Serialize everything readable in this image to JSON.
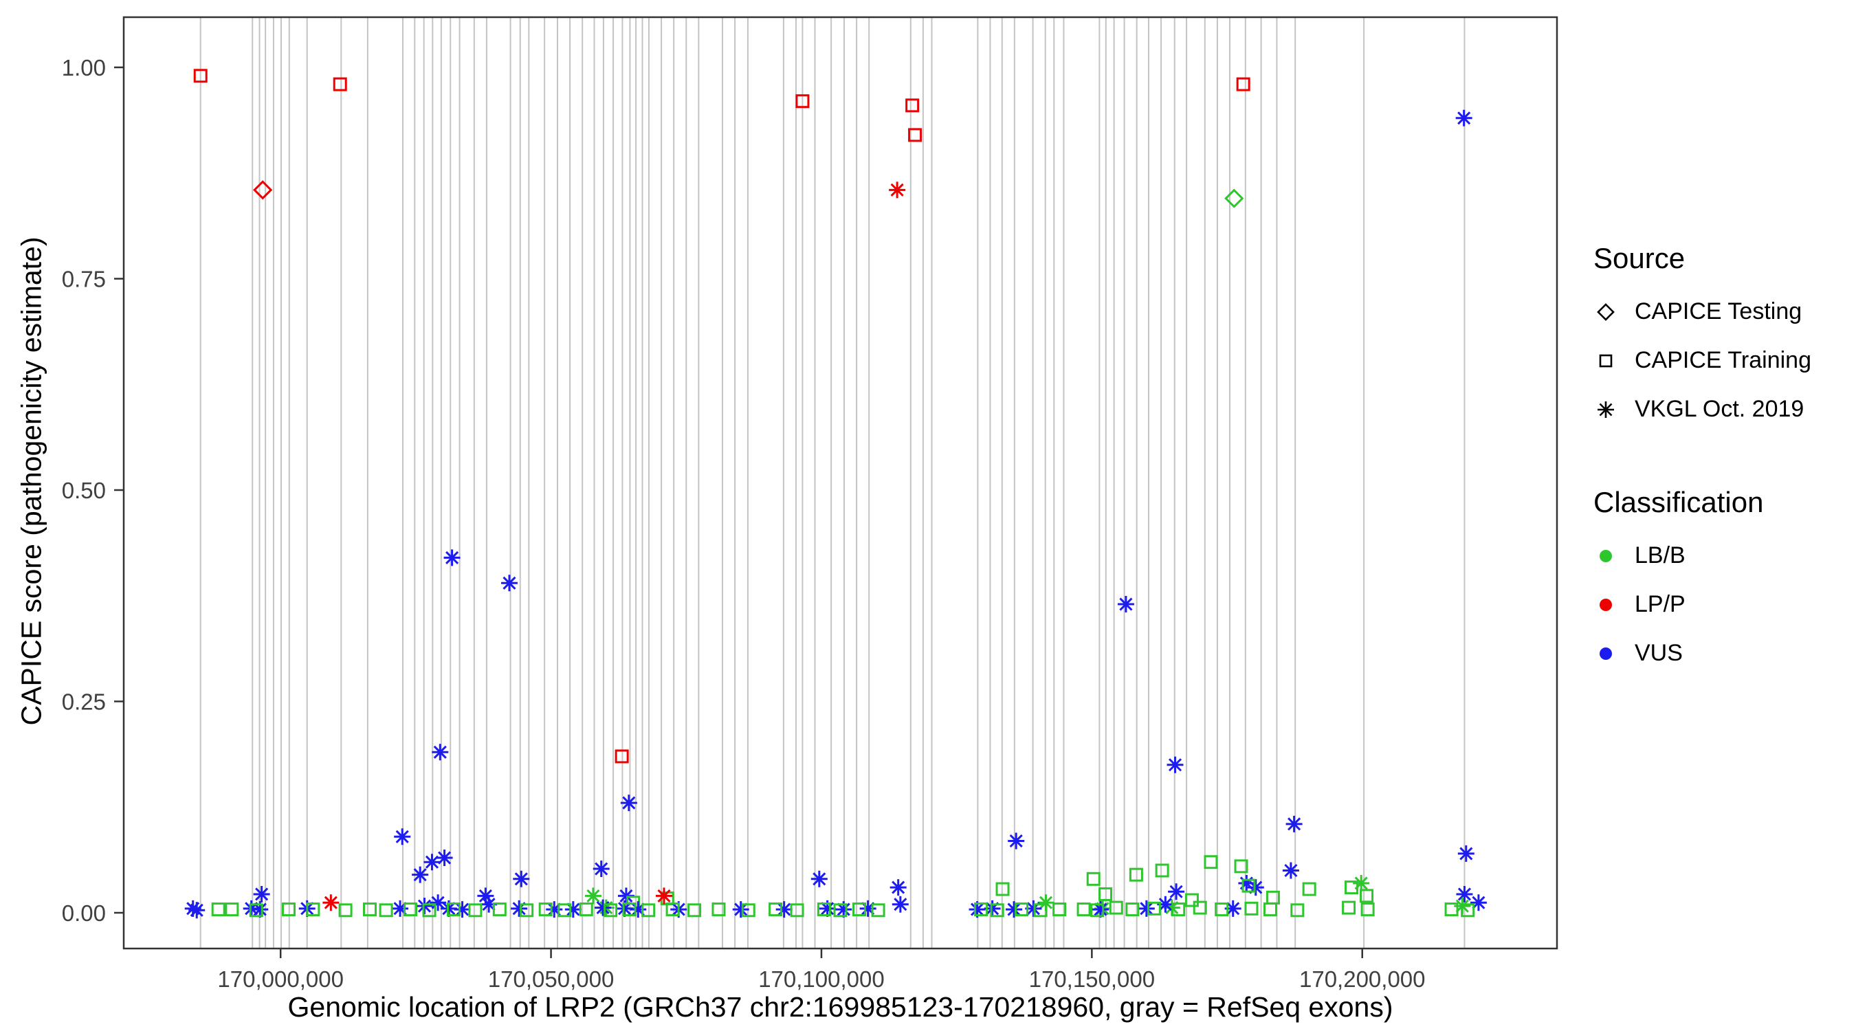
{
  "figure": {
    "xlabel": "Genomic location of LRP2 (GRCh37 chr2:169985123-170218960, gray = RefSeq exons)",
    "ylabel": "CAPICE score (pathogenicity estimate)"
  },
  "legend": {
    "source": {
      "title": "Source",
      "items": [
        {
          "label": "CAPICE Testing",
          "shape": "diamond"
        },
        {
          "label": "CAPICE Training",
          "shape": "square"
        },
        {
          "label": "VKGL Oct. 2019",
          "shape": "asterisk"
        }
      ]
    },
    "classification": {
      "title": "Classification",
      "items": [
        {
          "label": "LB/B",
          "color": "#2DC62D"
        },
        {
          "label": "LP/P",
          "color": "#EE0000"
        },
        {
          "label": "VUS",
          "color": "#1C1CF0"
        }
      ]
    }
  },
  "chart_data": {
    "type": "scatter",
    "title": "",
    "xlabel": "Genomic location of LRP2 (GRCh37 chr2:169985123-170218960, gray = RefSeq exons)",
    "ylabel": "CAPICE score (pathogenicity estimate)",
    "xlim": [
      169971000,
      170236000
    ],
    "ylim": [
      0,
      1
    ],
    "x_ticks": [
      170000000,
      170050000,
      170100000,
      170150000,
      170200000
    ],
    "x_tick_labels": [
      "170,000,000",
      "170,050,000",
      "170,100,000",
      "170,150,000",
      "170,200,000"
    ],
    "y_ticks": [
      0,
      0.25,
      0.5,
      0.75,
      1
    ],
    "y_tick_labels": [
      "0.00",
      "0.25",
      "0.50",
      "0.75",
      "1.00"
    ],
    "grid": false,
    "legend_position": "right",
    "encoding": {
      "shape_by": "source",
      "color_by": "classification"
    },
    "shape_map": {
      "test": "open-diamond (CAPICE Testing)",
      "train": "open-square (CAPICE Training)",
      "vkgl": "asterisk (VKGL Oct. 2019)"
    },
    "colors": {
      "B": "#2DC62D",
      "P": "#EE0000",
      "U": "#1C1CF0"
    },
    "class_map": {
      "B": "LB/B",
      "P": "LP/P",
      "U": "VUS"
    },
    "exon_color": "#C4C4C4",
    "exons": [
      169985200,
      169994800,
      169996100,
      169997200,
      169998700,
      170000100,
      170001600,
      170004900,
      170011200,
      170016100,
      170022600,
      170024800,
      170026500,
      170028100,
      170029700,
      170031400,
      170033100,
      170035800,
      170038100,
      170042500,
      170044300,
      170045900,
      170048800,
      170051200,
      170053500,
      170055800,
      170058000,
      170059700,
      170061500,
      170063200,
      170064600,
      170065700,
      170066900,
      170068100,
      170070400,
      170072700,
      170075000,
      170077300,
      170081700,
      170084000,
      170086400,
      170093000,
      170095300,
      170096500,
      170098800,
      170101800,
      170104200,
      170106500,
      170108800,
      170116500,
      170118800,
      170120400,
      170128900,
      170131200,
      170133400,
      170135700,
      170139100,
      170141400,
      170143000,
      170144800,
      170151400,
      170152600,
      170154100,
      170156000,
      170158300,
      170160500,
      170162800,
      170165300,
      170167500,
      170170900,
      170173200,
      170175500,
      170178400,
      170181300,
      170184200,
      170187600,
      170200300,
      170218900
    ],
    "points": [
      [
        169985200,
        0.99,
        "train",
        "P"
      ],
      [
        170011000,
        0.98,
        "train",
        "P"
      ],
      [
        170096500,
        0.96,
        "train",
        "P"
      ],
      [
        170116800,
        0.955,
        "train",
        "P"
      ],
      [
        170117300,
        0.92,
        "train",
        "P"
      ],
      [
        170178000,
        0.98,
        "train",
        "P"
      ],
      [
        170063100,
        0.185,
        "train",
        "P"
      ],
      [
        169996700,
        0.855,
        "test",
        "P"
      ],
      [
        170114000,
        0.855,
        "vkgl",
        "P"
      ],
      [
        170176300,
        0.845,
        "test",
        "B"
      ],
      [
        170218800,
        0.94,
        "vkgl",
        "U"
      ],
      [
        170031700,
        0.42,
        "vkgl",
        "U"
      ],
      [
        170042300,
        0.39,
        "vkgl",
        "U"
      ],
      [
        170156300,
        0.365,
        "vkgl",
        "U"
      ],
      [
        170029500,
        0.19,
        "vkgl",
        "U"
      ],
      [
        170165400,
        0.175,
        "vkgl",
        "U"
      ],
      [
        170064400,
        0.13,
        "vkgl",
        "U"
      ],
      [
        170187400,
        0.105,
        "vkgl",
        "U"
      ],
      [
        170022500,
        0.09,
        "vkgl",
        "U"
      ],
      [
        170136000,
        0.085,
        "vkgl",
        "U"
      ],
      [
        170219200,
        0.07,
        "vkgl",
        "U"
      ],
      [
        170030300,
        0.065,
        "vkgl",
        "U"
      ],
      [
        170028000,
        0.06,
        "vkgl",
        "U"
      ],
      [
        170059300,
        0.052,
        "vkgl",
        "U"
      ],
      [
        170186800,
        0.05,
        "vkgl",
        "U"
      ],
      [
        170025800,
        0.045,
        "vkgl",
        "U"
      ],
      [
        170044500,
        0.04,
        "vkgl",
        "U"
      ],
      [
        170099600,
        0.04,
        "vkgl",
        "U"
      ],
      [
        170178600,
        0.035,
        "vkgl",
        "U"
      ],
      [
        170114200,
        0.03,
        "vkgl",
        "U"
      ],
      [
        170180300,
        0.03,
        "vkgl",
        "U"
      ],
      [
        169996500,
        0.022,
        "vkgl",
        "U"
      ],
      [
        170037900,
        0.02,
        "vkgl",
        "U"
      ],
      [
        170063900,
        0.02,
        "vkgl",
        "U"
      ],
      [
        170165600,
        0.025,
        "vkgl",
        "U"
      ],
      [
        170218900,
        0.022,
        "vkgl",
        "U"
      ],
      [
        170221500,
        0.012,
        "vkgl",
        "U"
      ],
      [
        170172000,
        0.06,
        "train",
        "B"
      ],
      [
        170177600,
        0.055,
        "train",
        "B"
      ],
      [
        170163000,
        0.05,
        "train",
        "B"
      ],
      [
        170158200,
        0.045,
        "train",
        "B"
      ],
      [
        170150300,
        0.04,
        "train",
        "B"
      ],
      [
        170133500,
        0.028,
        "train",
        "B"
      ],
      [
        170152500,
        0.022,
        "train",
        "B"
      ],
      [
        170179000,
        0.032,
        "train",
        "B"
      ],
      [
        170190200,
        0.028,
        "train",
        "B"
      ],
      [
        170198000,
        0.03,
        "train",
        "B"
      ],
      [
        170200800,
        0.02,
        "train",
        "B"
      ],
      [
        170071500,
        0.017,
        "train",
        "B"
      ],
      [
        170065200,
        0.012,
        "train",
        "B"
      ],
      [
        170168500,
        0.015,
        "train",
        "B"
      ],
      [
        170183500,
        0.018,
        "train",
        "B"
      ],
      [
        170199800,
        0.035,
        "vkgl",
        "B"
      ],
      [
        170057800,
        0.02,
        "vkgl",
        "B"
      ],
      [
        170141500,
        0.012,
        "vkgl",
        "B"
      ],
      [
        170218500,
        0.008,
        "vkgl",
        "B"
      ],
      [
        170164800,
        0.006,
        "vkgl",
        "B"
      ],
      [
        170060200,
        0.006,
        "vkgl",
        "B"
      ],
      [
        170152000,
        0.005,
        "vkgl",
        "B"
      ],
      [
        170009300,
        0.012,
        "vkgl",
        "P"
      ],
      [
        170070900,
        0.02,
        "vkgl",
        "P"
      ],
      [
        169983800,
        0.005,
        "vkgl",
        "U"
      ],
      [
        169984500,
        0.003,
        "vkgl",
        "U"
      ],
      [
        169994600,
        0.005,
        "vkgl",
        "U"
      ],
      [
        169996200,
        0.004,
        "vkgl",
        "U"
      ],
      [
        170004900,
        0.005,
        "vkgl",
        "U"
      ],
      [
        170022100,
        0.005,
        "vkgl",
        "U"
      ],
      [
        170026600,
        0.008,
        "vkgl",
        "U"
      ],
      [
        170029100,
        0.012,
        "vkgl",
        "U"
      ],
      [
        170031100,
        0.005,
        "vkgl",
        "U"
      ],
      [
        170033600,
        0.004,
        "vkgl",
        "U"
      ],
      [
        170038500,
        0.01,
        "vkgl",
        "U"
      ],
      [
        170044100,
        0.005,
        "vkgl",
        "U"
      ],
      [
        170050600,
        0.004,
        "vkgl",
        "U"
      ],
      [
        170054100,
        0.004,
        "vkgl",
        "U"
      ],
      [
        170059600,
        0.006,
        "vkgl",
        "U"
      ],
      [
        170063600,
        0.005,
        "vkgl",
        "U"
      ],
      [
        170066100,
        0.004,
        "vkgl",
        "U"
      ],
      [
        170073600,
        0.004,
        "vkgl",
        "U"
      ],
      [
        170085100,
        0.004,
        "vkgl",
        "U"
      ],
      [
        170093100,
        0.004,
        "vkgl",
        "U"
      ],
      [
        170101100,
        0.005,
        "vkgl",
        "U"
      ],
      [
        170104100,
        0.004,
        "vkgl",
        "U"
      ],
      [
        170108600,
        0.005,
        "vkgl",
        "U"
      ],
      [
        170114600,
        0.01,
        "vkgl",
        "U"
      ],
      [
        170128800,
        0.004,
        "vkgl",
        "U"
      ],
      [
        170131600,
        0.005,
        "vkgl",
        "U"
      ],
      [
        170135600,
        0.004,
        "vkgl",
        "U"
      ],
      [
        170139200,
        0.005,
        "vkgl",
        "U"
      ],
      [
        170151600,
        0.004,
        "vkgl",
        "U"
      ],
      [
        170160100,
        0.005,
        "vkgl",
        "U"
      ],
      [
        170163600,
        0.01,
        "vkgl",
        "U"
      ],
      [
        170176100,
        0.005,
        "vkgl",
        "U"
      ],
      [
        169988500,
        0.004,
        "train",
        "B"
      ],
      [
        169991000,
        0.004,
        "train",
        "B"
      ],
      [
        169995500,
        0.003,
        "train",
        "B"
      ],
      [
        170001500,
        0.004,
        "train",
        "B"
      ],
      [
        170006000,
        0.004,
        "train",
        "B"
      ],
      [
        170012000,
        0.003,
        "train",
        "B"
      ],
      [
        170016500,
        0.004,
        "train",
        "B"
      ],
      [
        170019500,
        0.003,
        "train",
        "B"
      ],
      [
        170024000,
        0.004,
        "train",
        "B"
      ],
      [
        170027500,
        0.003,
        "train",
        "B"
      ],
      [
        170032000,
        0.004,
        "train",
        "B"
      ],
      [
        170036000,
        0.003,
        "train",
        "B"
      ],
      [
        170040500,
        0.004,
        "train",
        "B"
      ],
      [
        170045500,
        0.003,
        "train",
        "B"
      ],
      [
        170049000,
        0.004,
        "train",
        "B"
      ],
      [
        170052500,
        0.003,
        "train",
        "B"
      ],
      [
        170056500,
        0.004,
        "train",
        "B"
      ],
      [
        170061000,
        0.003,
        "train",
        "B"
      ],
      [
        170064500,
        0.004,
        "train",
        "B"
      ],
      [
        170068000,
        0.003,
        "train",
        "B"
      ],
      [
        170072500,
        0.004,
        "train",
        "B"
      ],
      [
        170076500,
        0.003,
        "train",
        "B"
      ],
      [
        170081000,
        0.004,
        "train",
        "B"
      ],
      [
        170086500,
        0.003,
        "train",
        "B"
      ],
      [
        170091500,
        0.004,
        "train",
        "B"
      ],
      [
        170095500,
        0.003,
        "train",
        "B"
      ],
      [
        170100500,
        0.004,
        "train",
        "B"
      ],
      [
        170103500,
        0.003,
        "train",
        "B"
      ],
      [
        170107000,
        0.004,
        "train",
        "B"
      ],
      [
        170110500,
        0.003,
        "train",
        "B"
      ],
      [
        170129500,
        0.004,
        "train",
        "B"
      ],
      [
        170132500,
        0.003,
        "train",
        "B"
      ],
      [
        170137000,
        0.004,
        "train",
        "B"
      ],
      [
        170140500,
        0.003,
        "train",
        "B"
      ],
      [
        170144000,
        0.004,
        "train",
        "B"
      ],
      [
        170148500,
        0.004,
        "train",
        "B"
      ],
      [
        170151000,
        0.003,
        "train",
        "B"
      ],
      [
        170154500,
        0.006,
        "train",
        "B"
      ],
      [
        170157500,
        0.004,
        "train",
        "B"
      ],
      [
        170161500,
        0.005,
        "train",
        "B"
      ],
      [
        170166000,
        0.004,
        "train",
        "B"
      ],
      [
        170170000,
        0.006,
        "train",
        "B"
      ],
      [
        170174000,
        0.004,
        "train",
        "B"
      ],
      [
        170179500,
        0.005,
        "train",
        "B"
      ],
      [
        170183000,
        0.004,
        "train",
        "B"
      ],
      [
        170188000,
        0.003,
        "train",
        "B"
      ],
      [
        170197500,
        0.006,
        "train",
        "B"
      ],
      [
        170201000,
        0.004,
        "train",
        "B"
      ],
      [
        170216500,
        0.004,
        "train",
        "B"
      ],
      [
        170219500,
        0.003,
        "train",
        "B"
      ]
    ]
  }
}
